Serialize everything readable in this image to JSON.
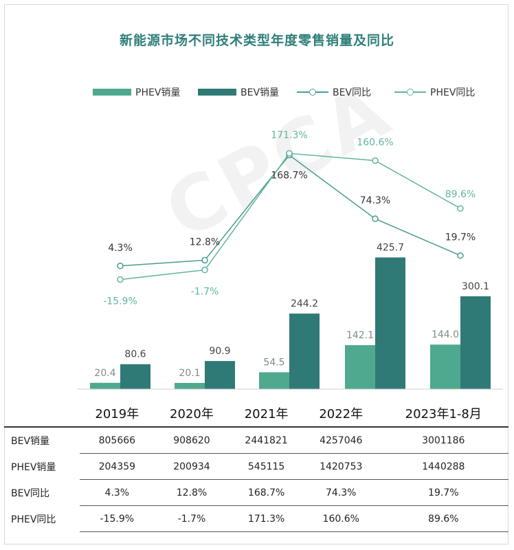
{
  "title": "新能源市场不同技术类型年度零售销量及同比",
  "watermark": "CPCA",
  "colors": {
    "phev_bar": "#4fa98f",
    "bev_bar": "#2f7a76",
    "bev_line": "#4a9b8e",
    "phev_line": "#5fb59f",
    "title": "#2e7f7a"
  },
  "legend": [
    "PHEV销量",
    "BEV销量",
    "BEV同比",
    "PHEV同比"
  ],
  "chart_data": {
    "type": "bar",
    "title": "新能源市场不同技术类型年度零售销量及同比",
    "categories": [
      "2019年",
      "2020年",
      "2021年",
      "2022年",
      "2023年1-8月"
    ],
    "series": [
      {
        "name": "PHEV销量",
        "type": "bar",
        "values": [
          20.4,
          20.1,
          54.5,
          142.1,
          144.0
        ],
        "labels": [
          "20.4",
          "20.1",
          "54.5",
          "142.1",
          "144.0"
        ]
      },
      {
        "name": "BEV销量",
        "type": "bar",
        "values": [
          80.6,
          90.9,
          244.2,
          425.7,
          300.1
        ],
        "labels": [
          "80.6",
          "90.9",
          "244.2",
          "425.7",
          "300.1"
        ]
      },
      {
        "name": "BEV同比",
        "type": "line",
        "values": [
          4.3,
          12.8,
          168.7,
          74.3,
          19.7
        ],
        "labels": [
          "4.3%",
          "12.8%",
          "168.7%",
          "74.3%",
          "19.7%"
        ]
      },
      {
        "name": "PHEV同比",
        "type": "line",
        "values": [
          -15.9,
          -1.7,
          171.3,
          160.6,
          89.6
        ],
        "labels": [
          "-15.9%",
          "-1.7%",
          "171.3%",
          "160.6%",
          "89.6%"
        ]
      }
    ],
    "grid": false,
    "legend_position": "top"
  },
  "table": {
    "columns": [
      "2019年",
      "2020年",
      "2021年",
      "2022年",
      "2023年1-8月"
    ],
    "rows": [
      {
        "label": "BEV销量",
        "values": [
          "805666",
          "908620",
          "2441821",
          "4257046",
          "3001186"
        ]
      },
      {
        "label": "PHEV销量",
        "values": [
          "204359",
          "200934",
          "545115",
          "1420753",
          "1440288"
        ]
      },
      {
        "label": "BEV同比",
        "values": [
          "4.3%",
          "12.8%",
          "168.7%",
          "74.3%",
          "19.7%"
        ]
      },
      {
        "label": "PHEV同比",
        "values": [
          "-15.9%",
          "-1.7%",
          "171.3%",
          "160.6%",
          "89.6%"
        ]
      }
    ]
  }
}
